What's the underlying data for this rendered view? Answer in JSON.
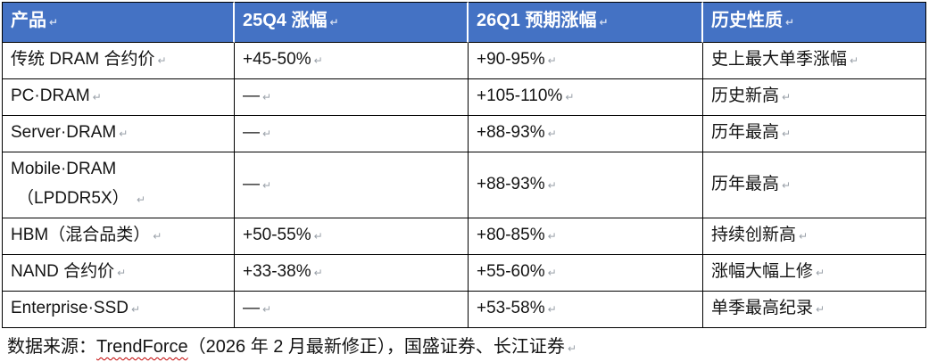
{
  "colors": {
    "header_background": "#4472C4",
    "header_text": "#ffffff",
    "table_border": "#000000",
    "body_text": "#141414",
    "formatting_mark": "#9aa1a9",
    "spellcheck_squiggle": "#c00000"
  },
  "marks": {
    "paragraph": "↵"
  },
  "table": {
    "columns": [
      {
        "key": "product",
        "label": "产品"
      },
      {
        "key": "q4_change",
        "label": "25Q4 涨幅"
      },
      {
        "key": "q1_forecast",
        "label": "26Q1 预期涨幅"
      },
      {
        "key": "history",
        "label": "历史性质"
      }
    ],
    "rows": [
      {
        "product": "传统 DRAM 合约价",
        "q4_change": "+45-50%",
        "q1_forecast": "+90-95%",
        "history": "史上最大单季涨幅"
      },
      {
        "product": "PC·DRAM",
        "q4_change": "—",
        "q1_forecast": "+105-110%",
        "history": "历史新高"
      },
      {
        "product": "Server·DRAM",
        "q4_change": "—",
        "q1_forecast": "+88-93%",
        "history": "历年最高"
      },
      {
        "product": "Mobile·DRAM",
        "product_line2": "（LPDDR5X）",
        "q4_change": "—",
        "q1_forecast": "+88-93%",
        "history": "历年最高"
      },
      {
        "product": "HBM（混合品类）",
        "q4_change": "+50-55%",
        "q1_forecast": "+80-85%",
        "history": "持续创新高"
      },
      {
        "product": "NAND 合约价",
        "q4_change": "+33-38%",
        "q1_forecast": "+55-60%",
        "history": "涨幅大幅上修"
      },
      {
        "product": "Enterprise·SSD",
        "q4_change": "—",
        "q1_forecast": "+53-58%",
        "history": "单季最高纪录"
      }
    ]
  },
  "footer": {
    "prefix": "数据来源：",
    "source_name": "TrendForce",
    "suffix": "（2026 年 2 月最新修正），国盛证券、长江证券"
  }
}
